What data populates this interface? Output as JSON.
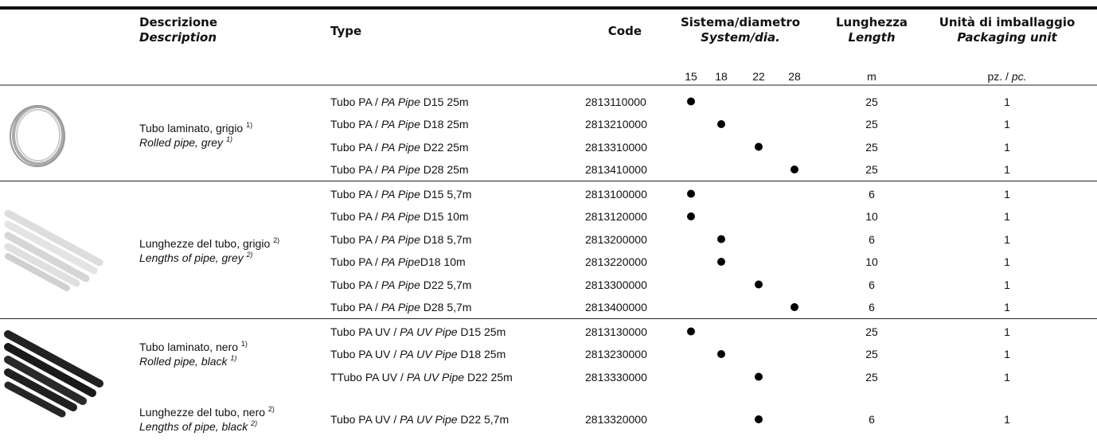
{
  "header": {
    "description": [
      "Descrizione",
      "Description"
    ],
    "type": "Type",
    "code": "Code",
    "system": [
      "Sistema/diametro",
      "System/dia."
    ],
    "length": [
      "Lunghezza",
      "Length"
    ],
    "packaging": [
      "Unità di imballaggio",
      "Packaging unit"
    ]
  },
  "subheader": {
    "diameters": [
      15,
      18,
      22,
      28
    ],
    "length_unit": "m",
    "packaging_unit": [
      "pz. / ",
      "pc."
    ]
  },
  "groups": [
    {
      "items": [
        {
          "description": {
            "it": "Tubo laminato, grigio ",
            "it_note": "1)",
            "en": "Rolled pipe, grey ",
            "en_note": "1)"
          },
          "rows": [
            {
              "type": [
                "Tubo PA / ",
                "PA Pipe",
                " D15 25m"
              ],
              "code": "2813110000",
              "diameter": 15,
              "length": 25,
              "packaging": 1
            },
            {
              "type": [
                "Tubo PA / ",
                "PA Pipe",
                " D18 25m"
              ],
              "code": "2813210000",
              "diameter": 18,
              "length": 25,
              "packaging": 1
            },
            {
              "type": [
                "Tubo PA / ",
                "PA Pipe",
                " D22 25m"
              ],
              "code": "2813310000",
              "diameter": 22,
              "length": 25,
              "packaging": 1
            },
            {
              "type": [
                "Tubo PA / ",
                "PA Pipe",
                " D28 25m"
              ],
              "code": "2813410000",
              "diameter": 28,
              "length": 25,
              "packaging": 1
            }
          ]
        }
      ]
    },
    {
      "items": [
        {
          "description": {
            "it": "Lunghezze del tubo, grigio ",
            "it_note": "2)",
            "en": "Lengths of pipe, grey ",
            "en_note": "2)"
          },
          "rows": [
            {
              "type": [
                "Tubo PA / ",
                "PA Pipe",
                " D15 5,7m"
              ],
              "code": "2813100000",
              "diameter": 15,
              "length": 6,
              "packaging": 1
            },
            {
              "type": [
                "Tubo PA / ",
                "PA Pipe",
                " D15 10m"
              ],
              "code": "2813120000",
              "diameter": 15,
              "length": 10,
              "packaging": 1
            },
            {
              "type": [
                "Tubo PA / ",
                "PA Pipe",
                " D18 5,7m"
              ],
              "code": "2813200000",
              "diameter": 18,
              "length": 6,
              "packaging": 1
            },
            {
              "type": [
                "Tubo PA / ",
                "PA Pipe",
                "D18 10m"
              ],
              "code": "2813220000",
              "diameter": 18,
              "length": 10,
              "packaging": 1
            },
            {
              "type": [
                "Tubo PA / ",
                "PA Pipe",
                " D22 5,7m"
              ],
              "code": "2813300000",
              "diameter": 22,
              "length": 6,
              "packaging": 1
            },
            {
              "type": [
                "Tubo PA / ",
                "PA Pipe",
                " D28 5,7m"
              ],
              "code": "2813400000",
              "diameter": 28,
              "length": 6,
              "packaging": 1
            }
          ]
        }
      ]
    },
    {
      "items": [
        {
          "description": {
            "it": "Tubo laminato, nero ",
            "it_note": "1)",
            "en": "Rolled pipe, black ",
            "en_note": "1)"
          },
          "rows": [
            {
              "type": [
                "Tubo PA UV / ",
                "PA UV Pipe",
                " D15 25m"
              ],
              "code": "2813130000",
              "diameter": 15,
              "length": 25,
              "packaging": 1
            },
            {
              "type": [
                "Tubo PA UV / ",
                "PA UV Pipe",
                " D18 25m"
              ],
              "code": "2813230000",
              "diameter": 18,
              "length": 25,
              "packaging": 1
            },
            {
              "type": [
                "TTubo PA UV / ",
                "PA UV Pipe",
                " D22 25m"
              ],
              "code": "2813330000",
              "diameter": 22,
              "length": 25,
              "packaging": 1
            }
          ]
        },
        {
          "description": {
            "it": "Lunghezze del tubo, nero ",
            "it_note": "2)",
            "en": "Lengths of pipe, black ",
            "en_note": "2)"
          },
          "rows": [
            {
              "type": [
                "Tubo PA UV / ",
                "PA UV Pipe",
                " D22 5,7m"
              ],
              "code": "2813320000",
              "diameter": 22,
              "length": 6,
              "packaging": 1
            }
          ]
        }
      ]
    }
  ]
}
